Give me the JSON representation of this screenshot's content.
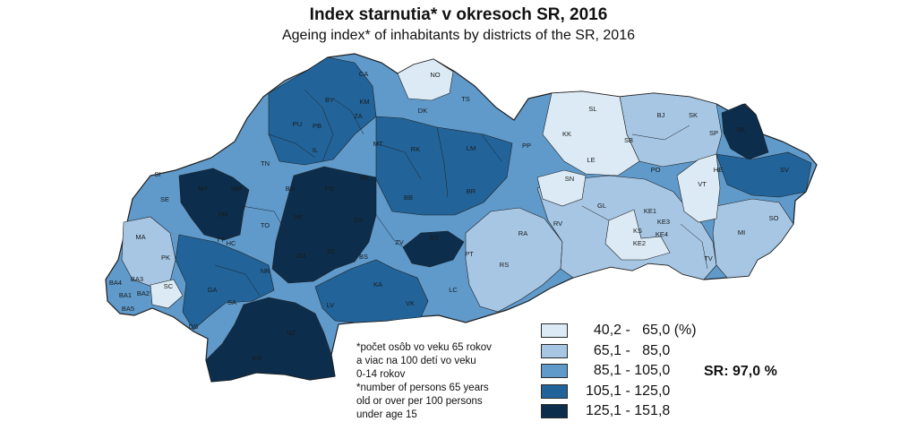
{
  "title": "Index starnutia* v okresoch SR, 2016",
  "subtitle": "Ageing index* of inhabitants by districts of the SR, 2016",
  "map": {
    "codes": [
      {
        "id": "CA",
        "cls": 2
      },
      {
        "id": "NO",
        "cls": 0
      },
      {
        "id": "TS",
        "cls": 1
      },
      {
        "id": "BY",
        "cls": 3
      },
      {
        "id": "KM",
        "cls": 3
      },
      {
        "id": "ZA",
        "cls": 3
      },
      {
        "id": "DK",
        "cls": 2
      },
      {
        "id": "PU",
        "cls": 3
      },
      {
        "id": "PB",
        "cls": 3
      },
      {
        "id": "IL",
        "cls": 3
      },
      {
        "id": "MT",
        "cls": 3
      },
      {
        "id": "RK",
        "cls": 3
      },
      {
        "id": "LM",
        "cls": 3
      },
      {
        "id": "TN",
        "cls": 3
      },
      {
        "id": "BN",
        "cls": 3
      },
      {
        "id": "PD",
        "cls": 4
      },
      {
        "id": "TR",
        "cls": 4
      },
      {
        "id": "SI",
        "cls": 2
      },
      {
        "id": "MY",
        "cls": 4
      },
      {
        "id": "NM",
        "cls": 4
      },
      {
        "id": "SE",
        "cls": 2
      },
      {
        "id": "PN",
        "cls": 4
      },
      {
        "id": "TO",
        "cls": 3
      },
      {
        "id": "PE",
        "cls": 4
      },
      {
        "id": "ZH",
        "cls": 4
      },
      {
        "id": "BB",
        "cls": 3
      },
      {
        "id": "BR",
        "cls": 3
      },
      {
        "id": "MA",
        "cls": 1
      },
      {
        "id": "TT",
        "cls": 3
      },
      {
        "id": "HC",
        "cls": 3
      },
      {
        "id": "ZM",
        "cls": 4
      },
      {
        "id": "ZC",
        "cls": 4
      },
      {
        "id": "ZV",
        "cls": 3
      },
      {
        "id": "DT",
        "cls": 4
      },
      {
        "id": "PK",
        "cls": 1
      },
      {
        "id": "BS",
        "cls": 3
      },
      {
        "id": "PT",
        "cls": 2
      },
      {
        "id": "NR",
        "cls": 3
      },
      {
        "id": "KA",
        "cls": 2
      },
      {
        "id": "BA4",
        "cls": 2
      },
      {
        "id": "BA3",
        "cls": 2
      },
      {
        "id": "SC",
        "cls": 0
      },
      {
        "id": "BA1",
        "cls": 2
      },
      {
        "id": "BA2",
        "cls": 2
      },
      {
        "id": "BA5",
        "cls": 1
      },
      {
        "id": "GA",
        "cls": 3
      },
      {
        "id": "SA",
        "cls": 3
      },
      {
        "id": "LV",
        "cls": 3
      },
      {
        "id": "VK",
        "cls": 3
      },
      {
        "id": "LC",
        "cls": 2
      },
      {
        "id": "RS",
        "cls": 1
      },
      {
        "id": "RA",
        "cls": 1
      },
      {
        "id": "DS",
        "cls": 2
      },
      {
        "id": "NZ",
        "cls": 4
      },
      {
        "id": "KN",
        "cls": 4
      },
      {
        "id": "SL",
        "cls": 0
      },
      {
        "id": "KK",
        "cls": 0
      },
      {
        "id": "BJ",
        "cls": 1
      },
      {
        "id": "SK",
        "cls": 1
      },
      {
        "id": "ML",
        "cls": 4
      },
      {
        "id": "PP",
        "cls": 2
      },
      {
        "id": "SB",
        "cls": 0
      },
      {
        "id": "SP",
        "cls": 2
      },
      {
        "id": "LE",
        "cls": 0
      },
      {
        "id": "PO",
        "cls": 1
      },
      {
        "id": "HE",
        "cls": 3
      },
      {
        "id": "SV",
        "cls": 3
      },
      {
        "id": "SN",
        "cls": 0
      },
      {
        "id": "VT",
        "cls": 0
      },
      {
        "id": "GL",
        "cls": 1
      },
      {
        "id": "KE1",
        "cls": 3
      },
      {
        "id": "KE3",
        "cls": 2
      },
      {
        "id": "SO",
        "cls": 2
      },
      {
        "id": "RV",
        "cls": 1
      },
      {
        "id": "KS",
        "cls": 0
      },
      {
        "id": "KE4",
        "cls": 1
      },
      {
        "id": "KE2",
        "cls": 3
      },
      {
        "id": "MI",
        "cls": 1
      },
      {
        "id": "TV",
        "cls": 1
      }
    ]
  },
  "legend": {
    "items": [
      {
        "label": "  40,2 -   65,0 (%)",
        "color": "#dbeaf4"
      },
      {
        "label": "  65,1 -   85,0",
        "color": "#a6c6e4"
      },
      {
        "label": "  85,1 - 105,0",
        "color": "#5f9acb"
      },
      {
        "label": "105,1 - 125,0",
        "color": "#22649a"
      },
      {
        "label": "125,1 - 151,8",
        "color": "#0c2e4c"
      }
    ]
  },
  "sr_value": "SR: 97,0 %",
  "note": {
    "lines": [
      "*počet osôb vo veku 65 rokov",
      "a viac na 100 detí vo veku",
      "0-14 rokov",
      "*number of persons 65 years",
      "old or over per 100 persons",
      "under age 15"
    ]
  }
}
